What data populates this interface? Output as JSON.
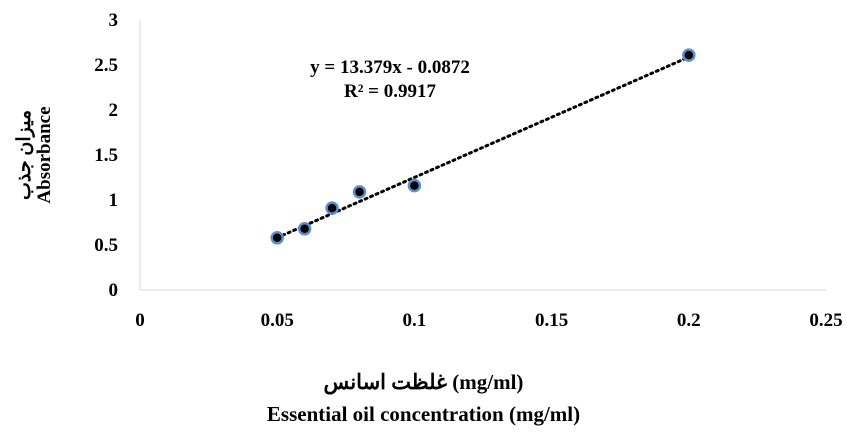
{
  "chart_data": {
    "type": "scatter",
    "xlabel_fa": "غلظت اسانس (mg/ml)",
    "xlabel": "Essential oil concentration (mg/ml)",
    "ylabel_fa": "میزان جذب",
    "ylabel": "Absorbance",
    "xlim": [
      0,
      0.25
    ],
    "ylim": [
      0,
      3
    ],
    "x_ticks": [
      "0",
      "0.05",
      "0.1",
      "0.15",
      "0.2",
      "0.25"
    ],
    "y_ticks": [
      "0",
      "0.5",
      "1",
      "1.5",
      "2",
      "2.5",
      "3"
    ],
    "series": [
      {
        "x": [
          0.05,
          0.06,
          0.07,
          0.08,
          0.1,
          0.2
        ],
        "y": [
          0.58,
          0.68,
          0.91,
          1.09,
          1.16,
          2.61
        ]
      }
    ],
    "trendline": {
      "type": "linear",
      "slope": 13.379,
      "intercept": -0.0872,
      "equation": "y = 13.379x - 0.0872",
      "r2": "R² = 0.9917"
    },
    "grid": false,
    "legend": "none",
    "colors": {
      "marker_fill": "#000000",
      "marker_edge": "#5b8fc9",
      "trendline": "#000000",
      "axis": "#d9d9d9"
    }
  }
}
